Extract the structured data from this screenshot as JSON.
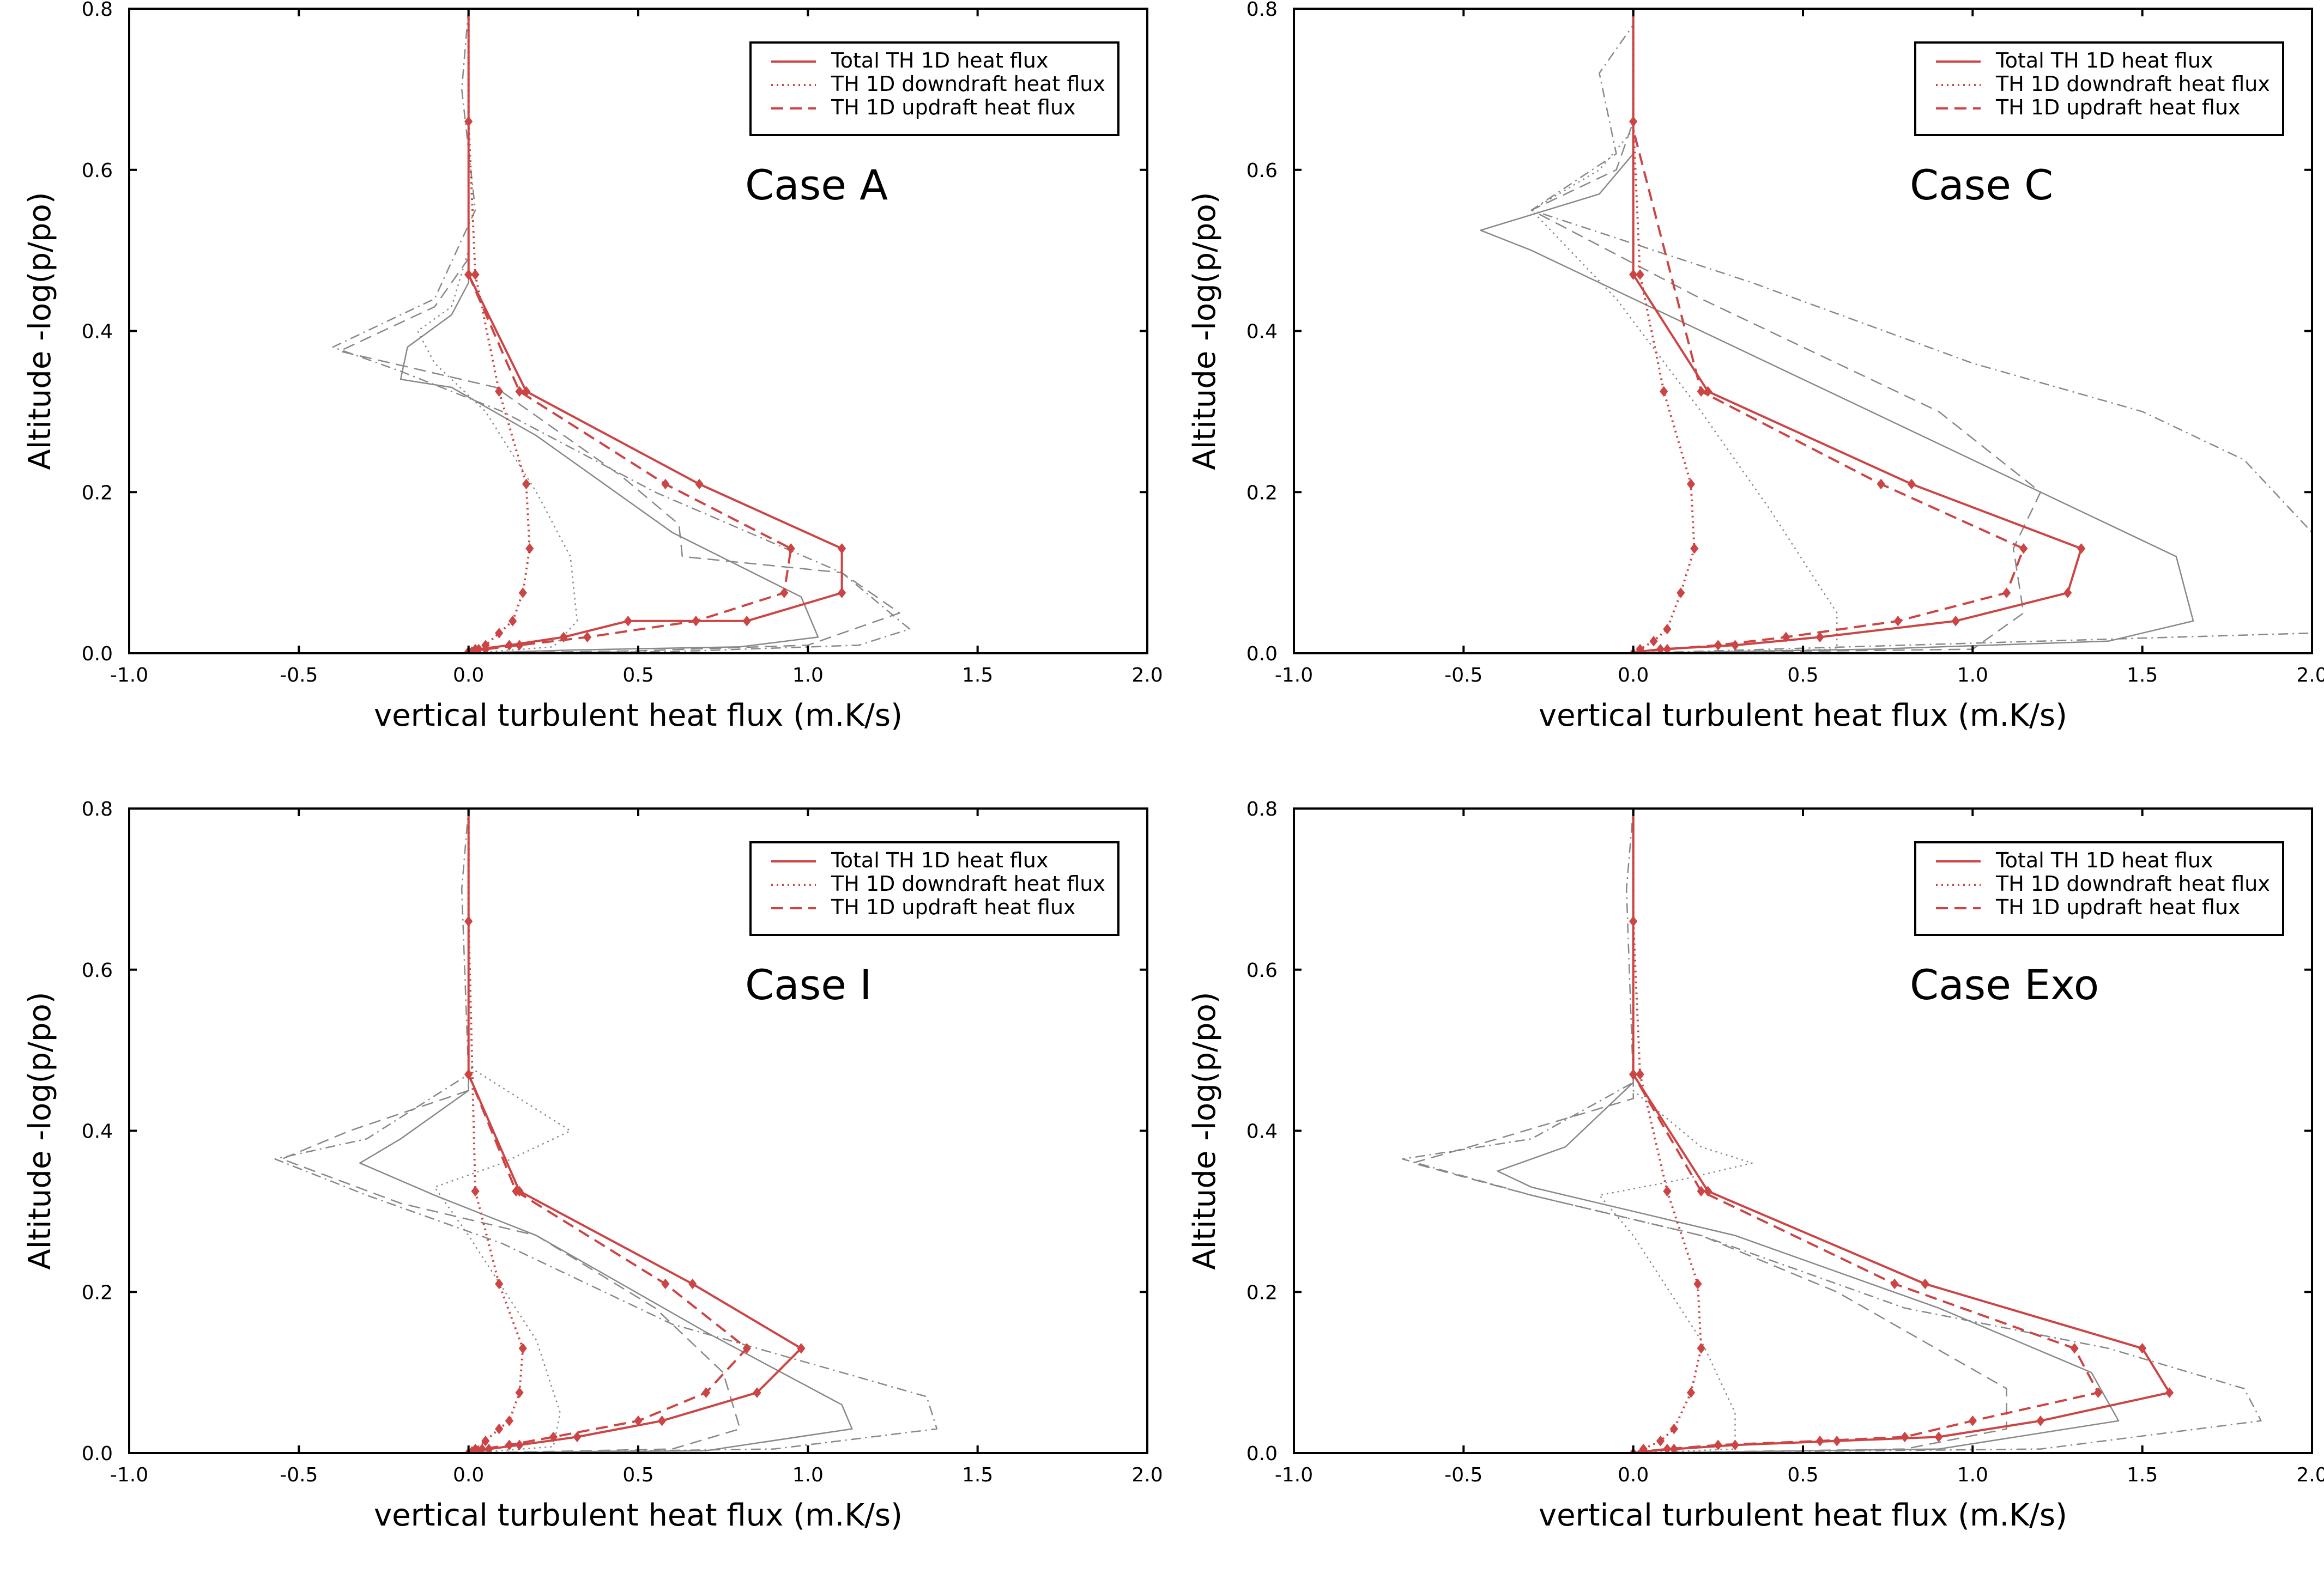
{
  "chart_data": [
    {
      "type": "line",
      "title": "Case A",
      "xlabel": "vertical turbulent heat flux (m.K/s)",
      "ylabel": "Altitude -log(p/po)",
      "xlim": [
        -1.0,
        2.0
      ],
      "ylim": [
        0.0,
        0.8
      ],
      "xticks": [
        "-1.0",
        "-0.5",
        "0.0",
        "0.5",
        "1.0",
        "1.5",
        "2.0"
      ],
      "yticks": [
        "0.0",
        "0.2",
        "0.4",
        "0.6",
        "0.8"
      ],
      "legend": [
        "Total TH 1D heat flux",
        "TH 1D downdraft heat flux",
        "TH 1D updraft heat flux"
      ],
      "legend_position": "top-right",
      "series": [
        {
          "name": "Total TH 1D heat flux",
          "style": "solid",
          "color": "#cc4444",
          "x": [
            0.0,
            0.0,
            0.03,
            0.12,
            0.28,
            0.47,
            0.82,
            1.1,
            1.1,
            0.68,
            0.17,
            0.0,
            0.0
          ],
          "y": [
            0.0,
            0.002,
            0.005,
            0.01,
            0.02,
            0.04,
            0.04,
            0.075,
            0.13,
            0.21,
            0.325,
            0.47,
            0.8
          ]
        },
        {
          "name": "TH 1D downdraft heat flux",
          "style": "dotted",
          "color": "#cc4444",
          "x": [
            0.0,
            0.02,
            0.05,
            0.09,
            0.13,
            0.16,
            0.18,
            0.17,
            0.09,
            0.02,
            0.0,
            0.0
          ],
          "y": [
            0.0,
            0.005,
            0.01,
            0.025,
            0.04,
            0.075,
            0.13,
            0.21,
            0.325,
            0.47,
            0.66,
            0.8
          ]
        },
        {
          "name": "TH 1D updraft heat flux",
          "style": "dashed",
          "color": "#cc4444",
          "x": [
            0.0,
            0.01,
            0.05,
            0.15,
            0.35,
            0.67,
            0.93,
            0.95,
            0.58,
            0.15,
            0.0
          ],
          "y": [
            0.0,
            0.002,
            0.005,
            0.01,
            0.02,
            0.04,
            0.075,
            0.13,
            0.21,
            0.325,
            0.47
          ]
        },
        {
          "name": "3D total (grey)",
          "style": "solid",
          "color": "#888888",
          "x": [
            0.0,
            0.3,
            0.8,
            1.03,
            0.98,
            0.6,
            0.2,
            -0.05,
            -0.2,
            -0.18,
            -0.05,
            0.0,
            0.0
          ],
          "y": [
            0.0,
            0.004,
            0.008,
            0.02,
            0.07,
            0.15,
            0.27,
            0.33,
            0.34,
            0.38,
            0.42,
            0.46,
            0.8
          ]
        },
        {
          "name": "3D downdraft (grey)",
          "style": "dotted",
          "color": "#888888",
          "x": [
            0.0,
            0.25,
            0.32,
            0.3,
            0.2,
            0.05,
            -0.1,
            -0.15,
            -0.05,
            0.0,
            0.0
          ],
          "y": [
            0.0,
            0.008,
            0.04,
            0.12,
            0.2,
            0.3,
            0.36,
            0.4,
            0.43,
            0.5,
            0.8
          ]
        },
        {
          "name": "3D updraft (grey)",
          "style": "dashed",
          "color": "#888888",
          "x": [
            0.0,
            0.5,
            1.0,
            1.27,
            1.1,
            0.63,
            0.62,
            0.45,
            0.08,
            -0.38,
            -0.1,
            0.0,
            0.0
          ],
          "y": [
            0.0,
            0.003,
            0.01,
            0.05,
            0.1,
            0.12,
            0.16,
            0.22,
            0.33,
            0.375,
            0.43,
            0.49,
            0.8
          ]
        },
        {
          "name": "3D total dash-dot (grey)",
          "style": "dashdot",
          "color": "#888888",
          "x": [
            0.0,
            0.6,
            1.15,
            1.3,
            1.1,
            0.55,
            0.1,
            -0.2,
            -0.4,
            -0.1,
            0.02,
            -0.02,
            0.0
          ],
          "y": [
            0.0,
            0.002,
            0.01,
            0.03,
            0.1,
            0.2,
            0.3,
            0.35,
            0.38,
            0.44,
            0.55,
            0.7,
            0.8
          ]
        }
      ]
    },
    {
      "type": "line",
      "title": "Case C",
      "xlabel": "vertical turbulent heat flux (m.K/s)",
      "ylabel": "Altitude -log(p/po)",
      "xlim": [
        -1.0,
        2.0
      ],
      "ylim": [
        0.0,
        0.8
      ],
      "xticks": [
        "-1.0",
        "-0.5",
        "0.0",
        "0.5",
        "1.0",
        "1.5",
        "2.0"
      ],
      "yticks": [
        "0.0",
        "0.2",
        "0.4",
        "0.6",
        "0.8"
      ],
      "legend": [
        "Total TH 1D heat flux",
        "TH 1D downdraft heat flux",
        "TH 1D updraft heat flux"
      ],
      "legend_position": "top-right",
      "series": [
        {
          "name": "Total TH 1D heat flux",
          "style": "solid",
          "color": "#cc4444",
          "x": [
            0.0,
            0.02,
            0.08,
            0.3,
            0.55,
            0.95,
            1.28,
            1.32,
            0.82,
            0.22,
            0.0,
            0.0
          ],
          "y": [
            0.0,
            0.002,
            0.005,
            0.01,
            0.02,
            0.04,
            0.075,
            0.13,
            0.21,
            0.325,
            0.47,
            0.8
          ]
        },
        {
          "name": "TH 1D downdraft heat flux",
          "style": "dotted",
          "color": "#cc4444",
          "x": [
            0.0,
            0.02,
            0.06,
            0.1,
            0.14,
            0.18,
            0.17,
            0.09,
            0.02,
            0.0,
            0.0
          ],
          "y": [
            0.0,
            0.005,
            0.015,
            0.03,
            0.075,
            0.13,
            0.21,
            0.325,
            0.47,
            0.66,
            0.8
          ]
        },
        {
          "name": "TH 1D updraft heat flux",
          "style": "dashed",
          "color": "#cc4444",
          "x": [
            0.0,
            0.02,
            0.1,
            0.25,
            0.45,
            0.78,
            1.1,
            1.15,
            0.73,
            0.2,
            0.0
          ],
          "y": [
            0.0,
            0.002,
            0.005,
            0.01,
            0.02,
            0.04,
            0.075,
            0.13,
            0.21,
            0.325,
            0.65
          ]
        },
        {
          "name": "3D total (grey)",
          "style": "solid",
          "color": "#888888",
          "x": [
            0.0,
            0.7,
            1.4,
            1.65,
            1.6,
            1.2,
            0.6,
            0.0,
            -0.3,
            -0.45,
            -0.1,
            0.0,
            0.0
          ],
          "y": [
            0.0,
            0.005,
            0.015,
            0.04,
            0.12,
            0.2,
            0.32,
            0.44,
            0.5,
            0.525,
            0.57,
            0.62,
            0.8
          ]
        },
        {
          "name": "3D downdraft (grey)",
          "style": "dotted",
          "color": "#888888",
          "x": [
            0.0,
            0.6,
            0.6,
            0.4,
            0.2,
            -0.05,
            -0.3,
            -0.1,
            0.0,
            0.0
          ],
          "y": [
            0.0,
            0.005,
            0.05,
            0.18,
            0.3,
            0.44,
            0.55,
            0.6,
            0.65,
            0.8
          ]
        },
        {
          "name": "3D updraft (grey)",
          "style": "dashed",
          "color": "#888888",
          "x": [
            0.0,
            1.0,
            1.15,
            1.12,
            1.2,
            0.9,
            0.2,
            -0.3,
            -0.05,
            0.0,
            0.0
          ],
          "y": [
            0.0,
            0.005,
            0.05,
            0.13,
            0.2,
            0.3,
            0.44,
            0.55,
            0.6,
            0.66,
            0.8
          ]
        },
        {
          "name": "3D total dash-dot (grey)",
          "style": "dashdot",
          "color": "#888888",
          "x": [
            0.0,
            2.0,
            2.0,
            1.8,
            1.5,
            1.0,
            0.35,
            -0.3,
            -0.05,
            -0.1,
            0.0,
            0.0
          ],
          "y": [
            0.0,
            0.025,
            0.15,
            0.24,
            0.3,
            0.36,
            0.46,
            0.55,
            0.62,
            0.72,
            0.78,
            0.8
          ]
        }
      ]
    },
    {
      "type": "line",
      "title": "Case I",
      "xlabel": "vertical turbulent heat flux (m.K/s)",
      "ylabel": "Altitude -log(p/po)",
      "xlim": [
        -1.0,
        2.0
      ],
      "ylim": [
        0.0,
        0.8
      ],
      "xticks": [
        "-1.0",
        "-0.5",
        "0.0",
        "0.5",
        "1.0",
        "1.5",
        "2.0"
      ],
      "yticks": [
        "0.0",
        "0.2",
        "0.4",
        "0.6",
        "0.8"
      ],
      "legend": [
        "Total TH 1D heat flux",
        "TH 1D downdraft heat flux",
        "TH 1D updraft heat flux"
      ],
      "legend_position": "top-right",
      "series": [
        {
          "name": "Total TH 1D heat flux",
          "style": "solid",
          "color": "#cc4444",
          "x": [
            0.0,
            0.02,
            0.06,
            0.15,
            0.32,
            0.57,
            0.85,
            0.98,
            0.66,
            0.15,
            0.0,
            0.0
          ],
          "y": [
            0.0,
            0.002,
            0.005,
            0.01,
            0.02,
            0.04,
            0.075,
            0.13,
            0.21,
            0.325,
            0.47,
            0.8
          ]
        },
        {
          "name": "TH 1D downdraft heat flux",
          "style": "dotted",
          "color": "#cc4444",
          "x": [
            0.0,
            0.02,
            0.05,
            0.09,
            0.12,
            0.15,
            0.16,
            0.09,
            0.02,
            0.0,
            0.0
          ],
          "y": [
            0.0,
            0.005,
            0.015,
            0.03,
            0.04,
            0.075,
            0.13,
            0.21,
            0.325,
            0.66,
            0.8
          ]
        },
        {
          "name": "TH 1D updraft heat flux",
          "style": "dashed",
          "color": "#cc4444",
          "x": [
            0.0,
            0.01,
            0.04,
            0.12,
            0.25,
            0.5,
            0.7,
            0.82,
            0.58,
            0.14,
            0.0
          ],
          "y": [
            0.0,
            0.002,
            0.005,
            0.01,
            0.02,
            0.04,
            0.075,
            0.13,
            0.21,
            0.325,
            0.47
          ]
        },
        {
          "name": "3D total (grey)",
          "style": "solid",
          "color": "#888888",
          "x": [
            0.0,
            0.7,
            1.13,
            1.1,
            0.7,
            0.2,
            -0.1,
            -0.32,
            -0.2,
            0.0,
            0.0
          ],
          "y": [
            0.0,
            0.003,
            0.03,
            0.06,
            0.15,
            0.27,
            0.32,
            0.36,
            0.39,
            0.45,
            0.8
          ]
        },
        {
          "name": "3D downdraft (grey)",
          "style": "dotted",
          "color": "#888888",
          "x": [
            0.0,
            0.25,
            0.27,
            0.2,
            0.0,
            -0.1,
            0.1,
            0.3,
            0.15,
            0.0,
            0.0
          ],
          "y": [
            0.0,
            0.008,
            0.05,
            0.14,
            0.27,
            0.33,
            0.36,
            0.4,
            0.44,
            0.48,
            0.8
          ]
        },
        {
          "name": "3D updraft (grey)",
          "style": "dashed",
          "color": "#888888",
          "x": [
            0.0,
            0.6,
            0.8,
            0.75,
            0.55,
            0.2,
            -0.2,
            -0.55,
            -0.35,
            0.0,
            0.0
          ],
          "y": [
            0.0,
            0.005,
            0.03,
            0.1,
            0.18,
            0.27,
            0.31,
            0.365,
            0.4,
            0.45,
            0.8
          ]
        },
        {
          "name": "3D total dash-dot (grey)",
          "style": "dashdot",
          "color": "#888888",
          "x": [
            0.0,
            0.9,
            1.38,
            1.35,
            1.1,
            0.6,
            0.1,
            -0.3,
            -0.57,
            -0.3,
            0.0,
            -0.02,
            0.0
          ],
          "y": [
            0.0,
            0.005,
            0.03,
            0.07,
            0.1,
            0.16,
            0.26,
            0.32,
            0.365,
            0.39,
            0.47,
            0.7,
            0.8
          ]
        }
      ]
    },
    {
      "type": "line",
      "title": "Case Exo",
      "xlabel": "vertical turbulent heat flux (m.K/s)",
      "ylabel": "Altitude -log(p/po)",
      "xlim": [
        -1.0,
        2.0
      ],
      "ylim": [
        0.0,
        0.8
      ],
      "xticks": [
        "-1.0",
        "-0.5",
        "0.0",
        "0.5",
        "1.0",
        "1.5",
        "2.0"
      ],
      "yticks": [
        "0.0",
        "0.2",
        "0.4",
        "0.6",
        "0.8"
      ],
      "legend": [
        "Total TH 1D heat flux",
        "TH 1D downdraft heat flux",
        "TH 1D updraft heat flux"
      ],
      "legend_position": "top-right",
      "series": [
        {
          "name": "Total TH 1D heat flux",
          "style": "solid",
          "color": "#cc4444",
          "x": [
            0.0,
            0.03,
            0.12,
            0.3,
            0.6,
            0.9,
            1.2,
            1.58,
            1.5,
            0.86,
            0.22,
            0.0,
            0.0
          ],
          "y": [
            0.0,
            0.002,
            0.005,
            0.01,
            0.015,
            0.02,
            0.04,
            0.075,
            0.13,
            0.21,
            0.325,
            0.47,
            0.8
          ]
        },
        {
          "name": "TH 1D downdraft heat flux",
          "style": "dotted",
          "color": "#cc4444",
          "x": [
            0.0,
            0.03,
            0.08,
            0.12,
            0.17,
            0.2,
            0.19,
            0.1,
            0.02,
            0.0,
            0.0
          ],
          "y": [
            0.0,
            0.005,
            0.015,
            0.03,
            0.075,
            0.13,
            0.21,
            0.325,
            0.47,
            0.66,
            0.8
          ]
        },
        {
          "name": "TH 1D updraft heat flux",
          "style": "dashed",
          "color": "#cc4444",
          "x": [
            0.0,
            0.03,
            0.1,
            0.25,
            0.55,
            0.8,
            1.0,
            1.37,
            1.3,
            0.77,
            0.2,
            0.0
          ],
          "y": [
            0.0,
            0.002,
            0.005,
            0.01,
            0.015,
            0.02,
            0.04,
            0.075,
            0.13,
            0.21,
            0.325,
            0.47
          ]
        },
        {
          "name": "3D total (grey)",
          "style": "solid",
          "color": "#888888",
          "x": [
            0.0,
            0.9,
            1.43,
            1.35,
            0.9,
            0.3,
            -0.3,
            -0.4,
            -0.2,
            0.0,
            0.0
          ],
          "y": [
            0.0,
            0.005,
            0.04,
            0.1,
            0.18,
            0.27,
            0.33,
            0.35,
            0.38,
            0.46,
            0.8
          ]
        },
        {
          "name": "3D downdraft (grey)",
          "style": "dotted",
          "color": "#888888",
          "x": [
            0.0,
            0.3,
            0.3,
            0.2,
            0.0,
            -0.1,
            0.15,
            0.35,
            0.2,
            0.0,
            0.0
          ],
          "y": [
            0.0,
            0.005,
            0.05,
            0.14,
            0.27,
            0.32,
            0.34,
            0.36,
            0.38,
            0.45,
            0.8
          ]
        },
        {
          "name": "3D updraft (grey)",
          "style": "dashed",
          "color": "#888888",
          "x": [
            0.0,
            0.8,
            1.1,
            1.1,
            0.6,
            0.2,
            -0.3,
            -0.65,
            -0.4,
            0.0,
            0.0
          ],
          "y": [
            0.0,
            0.005,
            0.03,
            0.08,
            0.2,
            0.27,
            0.32,
            0.36,
            0.39,
            0.44,
            0.8
          ]
        },
        {
          "name": "3D total dash-dot (grey)",
          "style": "dashdot",
          "color": "#888888",
          "x": [
            0.0,
            1.2,
            1.85,
            1.8,
            1.4,
            0.8,
            0.2,
            -0.3,
            -0.68,
            -0.3,
            0.0,
            -0.02,
            0.0
          ],
          "y": [
            0.0,
            0.005,
            0.04,
            0.08,
            0.13,
            0.18,
            0.27,
            0.32,
            0.365,
            0.39,
            0.46,
            0.7,
            0.8
          ]
        }
      ]
    }
  ]
}
